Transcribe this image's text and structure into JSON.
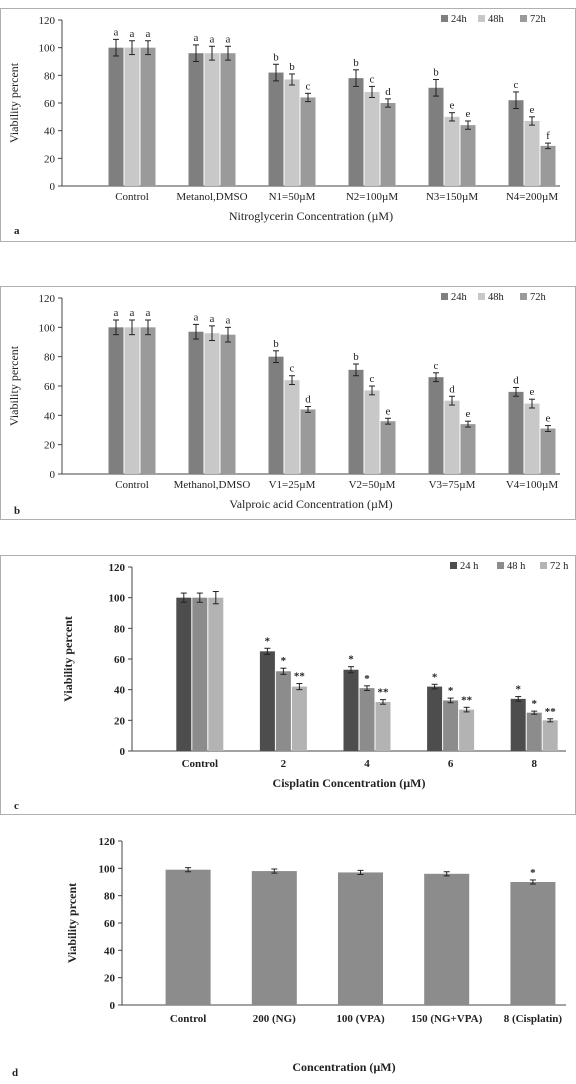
{
  "chart_data": [
    {
      "type": "bar",
      "panel_label": "a",
      "categories": [
        "Control",
        "Metanol,DMSO",
        "N1=50µM",
        "N2=100µM",
        "N3=150µM",
        "N4=200µM"
      ],
      "series": [
        {
          "name": "24h",
          "values": [
            100,
            96,
            82,
            78,
            71,
            62
          ],
          "errors": [
            6,
            6,
            6,
            6,
            6,
            6
          ],
          "labels": [
            "a",
            "a",
            "b",
            "b",
            "b",
            "c"
          ],
          "color": "#7f7f7f"
        },
        {
          "name": "48h",
          "values": [
            100,
            96,
            77,
            68,
            50,
            47
          ],
          "errors": [
            5,
            5,
            4,
            4,
            3,
            3
          ],
          "labels": [
            "a",
            "a",
            "b",
            "c",
            "e",
            "e"
          ],
          "color": "#c8c8c8"
        },
        {
          "name": "72h",
          "values": [
            100,
            96,
            64,
            60,
            44,
            29
          ],
          "errors": [
            5,
            5,
            3,
            3,
            3,
            2
          ],
          "labels": [
            "a",
            "a",
            "c",
            "d",
            "e",
            "f"
          ],
          "color": "#9a9a9a"
        }
      ],
      "xlabel": "Nitroglycerin Concentration (µM)",
      "ylabel": "Viability  percent",
      "ylim": [
        0,
        120
      ],
      "yticks": [
        0,
        20,
        40,
        60,
        80,
        100,
        120
      ],
      "legend": "top-right",
      "grid": false
    },
    {
      "type": "bar",
      "panel_label": "b",
      "categories": [
        "Control",
        "Methanol,DMSO",
        "V1=25µM",
        "V2=50µM",
        "V3=75µM",
        "V4=100µM"
      ],
      "series": [
        {
          "name": "24h",
          "values": [
            100,
            97,
            80,
            71,
            66,
            56
          ],
          "errors": [
            5,
            5,
            4,
            4,
            3,
            3
          ],
          "labels": [
            "a",
            "a",
            "b",
            "b",
            "c",
            "d"
          ],
          "color": "#7f7f7f"
        },
        {
          "name": "48h",
          "values": [
            100,
            96,
            64,
            57,
            50,
            48
          ],
          "errors": [
            5,
            5,
            3,
            3,
            3,
            3
          ],
          "labels": [
            "a",
            "a",
            "c",
            "c",
            "d",
            "e"
          ],
          "color": "#c8c8c8"
        },
        {
          "name": "72h",
          "values": [
            100,
            95,
            44,
            36,
            34,
            31
          ],
          "errors": [
            5,
            5,
            2,
            2,
            2,
            2
          ],
          "labels": [
            "a",
            "a",
            "d",
            "e",
            "e",
            "e"
          ],
          "color": "#9a9a9a"
        }
      ],
      "xlabel": "Valproic acid  Concentration (µM)",
      "ylabel": "Viability  percent",
      "ylim": [
        0,
        120
      ],
      "yticks": [
        0,
        20,
        40,
        60,
        80,
        100,
        120
      ],
      "legend": "top-right",
      "grid": false
    },
    {
      "type": "bar",
      "panel_label": "c",
      "categories": [
        "Control",
        "2",
        "4",
        "6",
        "8"
      ],
      "series": [
        {
          "name": "24 h",
          "values": [
            100,
            65,
            53,
            42,
            34
          ],
          "errors": [
            3,
            2,
            2,
            1.5,
            1.5
          ],
          "labels": [
            "",
            "*",
            "*",
            "*",
            "*"
          ],
          "color": "#4d4d4d"
        },
        {
          "name": "48 h",
          "values": [
            100,
            52,
            41,
            33,
            25
          ],
          "errors": [
            3,
            2,
            1.5,
            1.5,
            1
          ],
          "labels": [
            "",
            "*",
            "*",
            "*",
            "*"
          ],
          "color": "#8c8c8c"
        },
        {
          "name": "72 h",
          "values": [
            100,
            42,
            32,
            27,
            20
          ],
          "errors": [
            4,
            2,
            1.5,
            1.5,
            1
          ],
          "labels": [
            "",
            "**",
            "**",
            "**",
            "**"
          ],
          "color": "#b3b3b3"
        }
      ],
      "xlabel": "Cisplatin Concentration (µM)",
      "ylabel": "Viability percent",
      "ylim": [
        0,
        120
      ],
      "yticks": [
        0,
        20,
        40,
        60,
        80,
        100,
        120
      ],
      "legend": "top-right",
      "grid": false
    },
    {
      "type": "bar",
      "panel_label": "d",
      "categories": [
        "Control",
        "200 (NG)",
        "100 (VPA)",
        "150 (NG+VPA)",
        "8 (Cisplatin)"
      ],
      "series": [
        {
          "values": [
            99,
            98,
            97,
            96,
            90
          ],
          "errors": [
            1.5,
            1.5,
            1.5,
            1.5,
            1.5
          ],
          "labels": [
            "",
            "",
            "",
            "",
            "*"
          ],
          "color": "#8c8c8c"
        }
      ],
      "xlabel": "Concentration (µM)",
      "ylabel": "Viability prcent",
      "ylim": [
        0,
        120
      ],
      "yticks": [
        0,
        20,
        40,
        60,
        80,
        100,
        120
      ],
      "grid": false
    }
  ]
}
